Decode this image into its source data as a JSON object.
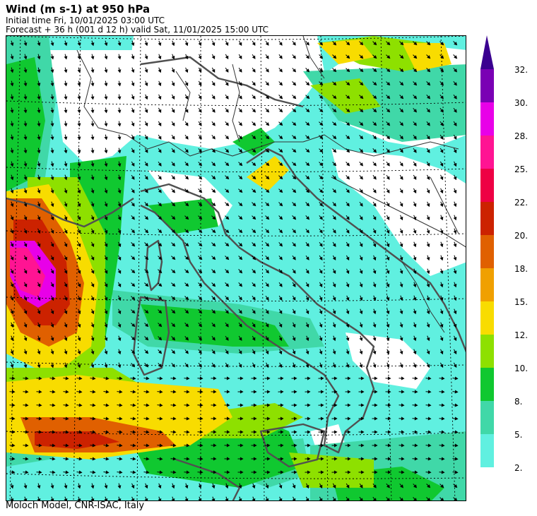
{
  "header": {
    "title": "Wind (m s-1) at 950 hPa",
    "initial_time": "Initial time  Fri, 10/01/2025  03:00 UTC",
    "forecast": "Forecast  +  36 h  (001 d 12 h)  valid Sat, 11/01/2025 15:00 UTC"
  },
  "footer": "Moloch Model, CNR-ISAC, Italy",
  "colorbar": {
    "levels": [
      {
        "label": "32.",
        "color": "#7a00b4"
      },
      {
        "label": "30.",
        "color": "#e800e8"
      },
      {
        "label": "28.",
        "color": "#ff1493"
      },
      {
        "label": "25.",
        "color": "#ee0044"
      },
      {
        "label": "22.",
        "color": "#cc2200"
      },
      {
        "label": "20.",
        "color": "#e06000"
      },
      {
        "label": "18.",
        "color": "#f0a000"
      },
      {
        "label": "15.",
        "color": "#f8dc00"
      },
      {
        "label": "12.",
        "color": "#8ee000"
      },
      {
        "label": "10.",
        "color": "#10c830"
      },
      {
        "label": "8.",
        "color": "#40d8a8"
      },
      {
        "label": "5.",
        "color": "#60f0e0"
      },
      {
        "label": "2.",
        "color": "#ffffff"
      }
    ],
    "extend_color": "#3a0090"
  }
}
